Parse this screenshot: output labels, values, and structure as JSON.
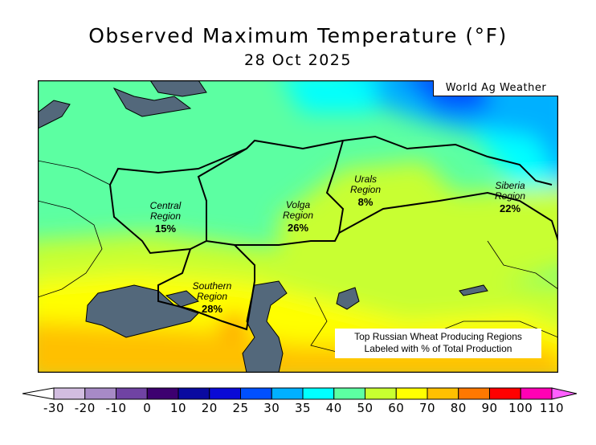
{
  "title": "Observed Maximum Temperature (°F)",
  "date": "28 Oct 2025",
  "brand": "World Ag Weather",
  "note": [
    "Top Russian Wheat Producing Regions",
    "Labeled with % of Total Production"
  ],
  "regions": [
    {
      "name": "Central",
      "line2": "Region",
      "pct": "15%"
    },
    {
      "name": "Volga",
      "line2": "Region",
      "pct": "26%"
    },
    {
      "name": "Urals",
      "line2": "Region",
      "pct": "8%"
    },
    {
      "name": "Siberia",
      "line2": "Region",
      "pct": "22%"
    },
    {
      "name": "Southern",
      "line2": "Region",
      "pct": "28%"
    }
  ],
  "legend": {
    "unit": "°F",
    "ticks": [
      "-30",
      "-20",
      "-10",
      "0",
      "10",
      "20",
      "25",
      "30",
      "35",
      "40",
      "50",
      "60",
      "70",
      "80",
      "90",
      "100",
      "110"
    ],
    "colors": [
      "#d2bde0",
      "#a78ac6",
      "#7043a3",
      "#3d0070",
      "#0a0aa0",
      "#0a0ad6",
      "#0050ff",
      "#00b0ff",
      "#00ffff",
      "#5cffa2",
      "#c8ff30",
      "#ffff00",
      "#ffc000",
      "#ff7800",
      "#ff0000",
      "#ff00b4"
    ],
    "below_color": "#ffffff",
    "above_color": "#ff60ff"
  },
  "colors": {
    "water": "#53687b"
  }
}
